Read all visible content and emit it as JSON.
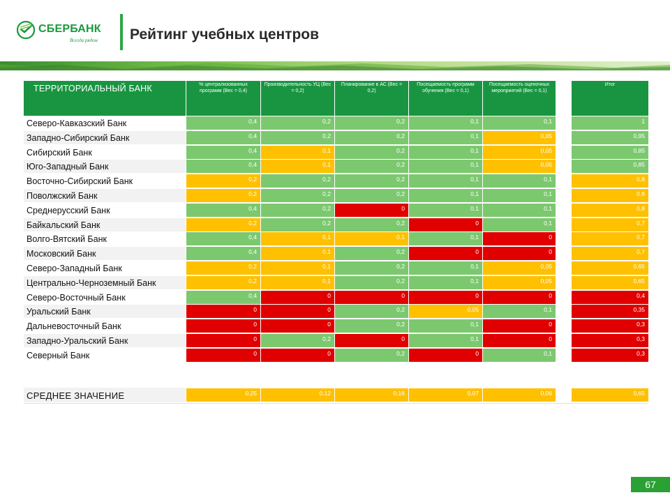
{
  "brand": {
    "name": "СБЕРБАНК",
    "tagline": "Всегда рядом",
    "colors": {
      "green": "#199541",
      "light_green": "#7cc86f",
      "yellow": "#ffc000",
      "red": "#e00000"
    }
  },
  "title": "Рейтинг учебных центров",
  "table": {
    "bank_header": "ТЕРРИТОРИАЛЬНЫЙ БАНК",
    "columns": [
      "% централизованных программ (Вес = 0,4)",
      "Производительность УЦ (Вес = 0,2)",
      "Планирование в АС (Вес = 0,2)",
      "Посещаемость программ обучения (Вес = 0,1)",
      "Посещаемость оценочных мероприятий (Вес = 0,1)"
    ],
    "total_header": "Итог",
    "rows": [
      {
        "name": "Северо-Кавказский Банк",
        "values": [
          "0,4",
          "0,2",
          "0,2",
          "0,1",
          "0,1"
        ],
        "total": "1",
        "colors": [
          "g",
          "g",
          "g",
          "g",
          "g"
        ],
        "total_color": "g"
      },
      {
        "name": "Западно-Сибирский Банк",
        "values": [
          "0,4",
          "0,2",
          "0,2",
          "0,1",
          "0,05"
        ],
        "total": "0,95",
        "colors": [
          "g",
          "g",
          "g",
          "g",
          "y"
        ],
        "total_color": "g"
      },
      {
        "name": "Сибирский Банк",
        "values": [
          "0,4",
          "0,1",
          "0,2",
          "0,1",
          "0,05"
        ],
        "total": "0,85",
        "colors": [
          "g",
          "y",
          "g",
          "g",
          "y"
        ],
        "total_color": "g"
      },
      {
        "name": "Юго-Западный Банк",
        "values": [
          "0,4",
          "0,1",
          "0,2",
          "0,1",
          "0,05"
        ],
        "total": "0,85",
        "colors": [
          "g",
          "y",
          "g",
          "g",
          "y"
        ],
        "total_color": "g"
      },
      {
        "name": "Восточно-Сибирский Банк",
        "values": [
          "0,2",
          "0,2",
          "0,2",
          "0,1",
          "0,1"
        ],
        "total": "0,8",
        "colors": [
          "y",
          "g",
          "g",
          "g",
          "g"
        ],
        "total_color": "y"
      },
      {
        "name": "Поволжский Банк",
        "values": [
          "0,2",
          "0,2",
          "0,2",
          "0,1",
          "0,1"
        ],
        "total": "0,8",
        "colors": [
          "y",
          "g",
          "g",
          "g",
          "g"
        ],
        "total_color": "y"
      },
      {
        "name": "Среднерусский Банк",
        "values": [
          "0,4",
          "0,2",
          "0",
          "0,1",
          "0,1"
        ],
        "total": "0,8",
        "colors": [
          "g",
          "g",
          "r",
          "g",
          "g"
        ],
        "total_color": "y"
      },
      {
        "name": "Байкальский Банк",
        "values": [
          "0,2",
          "0,2",
          "0,2",
          "0",
          "0,1"
        ],
        "total": "0,7",
        "colors": [
          "y",
          "g",
          "g",
          "r",
          "g"
        ],
        "total_color": "y"
      },
      {
        "name": "Волго-Вятский Банк",
        "values": [
          "0,4",
          "0,1",
          "0,1",
          "0,1",
          "0"
        ],
        "total": "0,7",
        "colors": [
          "g",
          "y",
          "y",
          "g",
          "r"
        ],
        "total_color": "y"
      },
      {
        "name": "Московский Банк",
        "values": [
          "0,4",
          "0,1",
          "0,2",
          "0",
          "0"
        ],
        "total": "0,7",
        "colors": [
          "g",
          "y",
          "g",
          "r",
          "r"
        ],
        "total_color": "y"
      },
      {
        "name": "Северо-Западный Банк",
        "values": [
          "0,2",
          "0,1",
          "0,2",
          "0,1",
          "0,05"
        ],
        "total": "0,65",
        "colors": [
          "y",
          "y",
          "g",
          "g",
          "y"
        ],
        "total_color": "y"
      },
      {
        "name": "Центрально-Черноземный Банк",
        "values": [
          "0,2",
          "0,1",
          "0,2",
          "0,1",
          "0,05"
        ],
        "total": "0,65",
        "colors": [
          "y",
          "y",
          "g",
          "g",
          "y"
        ],
        "total_color": "y"
      },
      {
        "name": "Северо-Восточный Банк",
        "values": [
          "0,4",
          "0",
          "0",
          "0",
          "0"
        ],
        "total": "0,4",
        "colors": [
          "g",
          "r",
          "r",
          "r",
          "r"
        ],
        "total_color": "r"
      },
      {
        "name": "Уральский Банк",
        "values": [
          "0",
          "0",
          "0,2",
          "0,05",
          "0,1"
        ],
        "total": "0,35",
        "colors": [
          "r",
          "r",
          "g",
          "y",
          "g"
        ],
        "total_color": "r"
      },
      {
        "name": "Дальневосточный Банк",
        "values": [
          "0",
          "0",
          "0,2",
          "0,1",
          "0"
        ],
        "total": "0,3",
        "colors": [
          "r",
          "r",
          "g",
          "g",
          "r"
        ],
        "total_color": "r"
      },
      {
        "name": "Западно-Уральский Банк",
        "values": [
          "0",
          "0,2",
          "0",
          "0,1",
          "0"
        ],
        "total": "0,3",
        "colors": [
          "r",
          "g",
          "r",
          "g",
          "r"
        ],
        "total_color": "r"
      },
      {
        "name": "Северный Банк",
        "values": [
          "0",
          "0",
          "0,2",
          "0",
          "0,1"
        ],
        "total": "0,3",
        "colors": [
          "r",
          "r",
          "g",
          "r",
          "g"
        ],
        "total_color": "r"
      }
    ],
    "average": {
      "name": "СРЕДНЕЕ ЗНАЧЕНИЕ",
      "values": [
        "0,25",
        "0,12",
        "0,16",
        "0,07",
        "0,06"
      ],
      "total": "0,65"
    }
  },
  "page_number": "67"
}
